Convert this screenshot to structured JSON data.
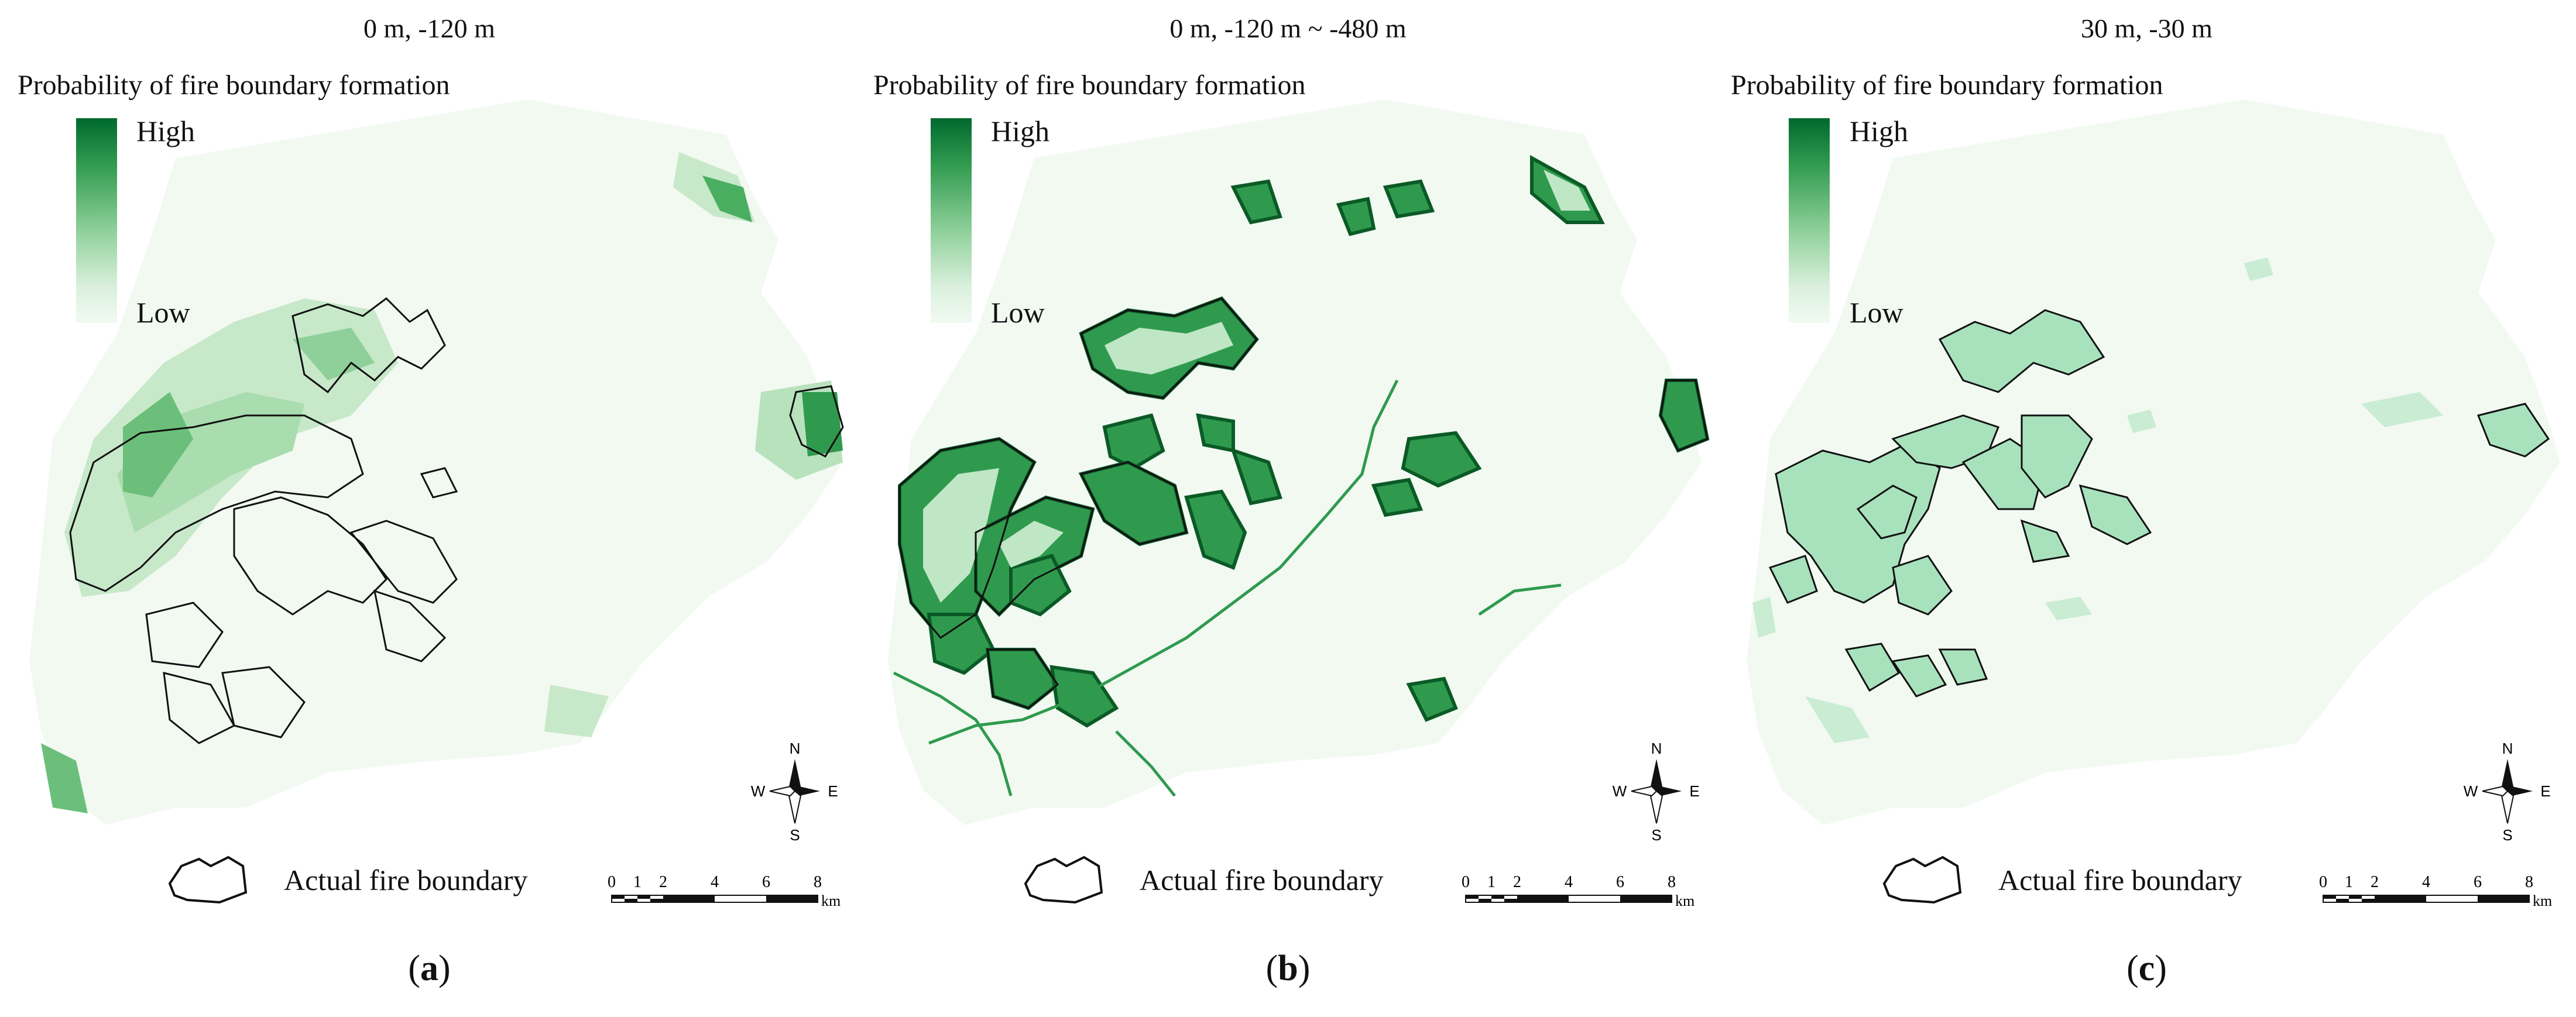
{
  "panels": [
    {
      "id": "a",
      "title": "0 m, -120 m",
      "legend_title": "Probability of fire boundary formation",
      "legend_high": "High",
      "legend_low": "Low",
      "boundary_label": "Actual fire boundary",
      "caption_open": "(",
      "caption_letter": "a",
      "caption_close": ")"
    },
    {
      "id": "b",
      "title": "0 m, -120 m  ~  -480 m",
      "legend_title": "Probability of fire boundary formation",
      "legend_high": "High",
      "legend_low": "Low",
      "boundary_label": "Actual fire boundary",
      "caption_open": "(",
      "caption_letter": "b",
      "caption_close": ")"
    },
    {
      "id": "c",
      "title": "30 m, -30 m",
      "legend_title": "Probability of fire boundary formation",
      "legend_high": "High",
      "legend_low": "Low",
      "boundary_label": "Actual fire boundary",
      "caption_open": "(",
      "caption_letter": "c",
      "caption_close": ")"
    }
  ],
  "compass": {
    "n": "N",
    "s": "S",
    "e": "E",
    "w": "W"
  },
  "scale": {
    "ticks": [
      "0",
      "1",
      "2",
      "4",
      "6",
      "8"
    ],
    "unit": "km"
  },
  "colors": {
    "ramp_high": "#00692f",
    "ramp_low": "#f2faf2",
    "area_fill": "#f1f9f1",
    "boundary_line": "#111111"
  }
}
